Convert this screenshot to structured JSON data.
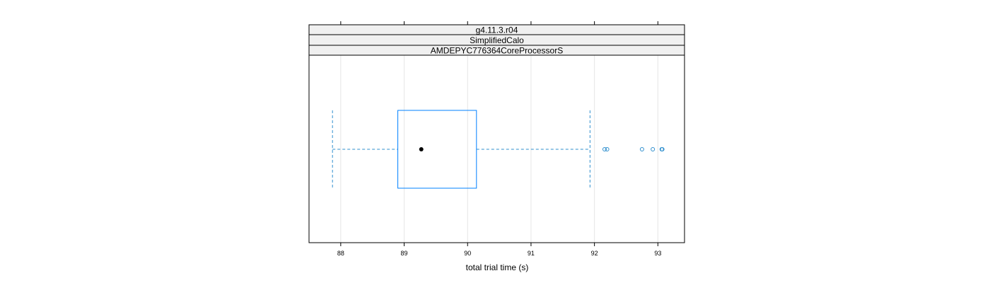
{
  "chart_data": {
    "type": "box",
    "strips": [
      "g4.11.3.r04",
      "SimplifiedCalo",
      "AMDEPYC776364CoreProcessorS"
    ],
    "xlabel": "total trial time (s)",
    "xlim": [
      87.5,
      93.42
    ],
    "x_ticks": [
      88,
      89,
      90,
      91,
      92,
      93
    ],
    "grid": true,
    "box": {
      "whisker_low": 87.87,
      "q1": 88.9,
      "median": 89.27,
      "q3": 90.14,
      "whisker_high": 91.93
    },
    "outliers": [
      92.16,
      92.2,
      92.75,
      92.92,
      93.06,
      93.07
    ],
    "colors": {
      "box": "#0080ff",
      "whisker": "#2f8fce",
      "median_dot": "#000000",
      "outlier": "#2f8fce",
      "grid": "#e6e6e6",
      "strip_bg": "#f0f0f0",
      "frame": "#000000"
    }
  }
}
